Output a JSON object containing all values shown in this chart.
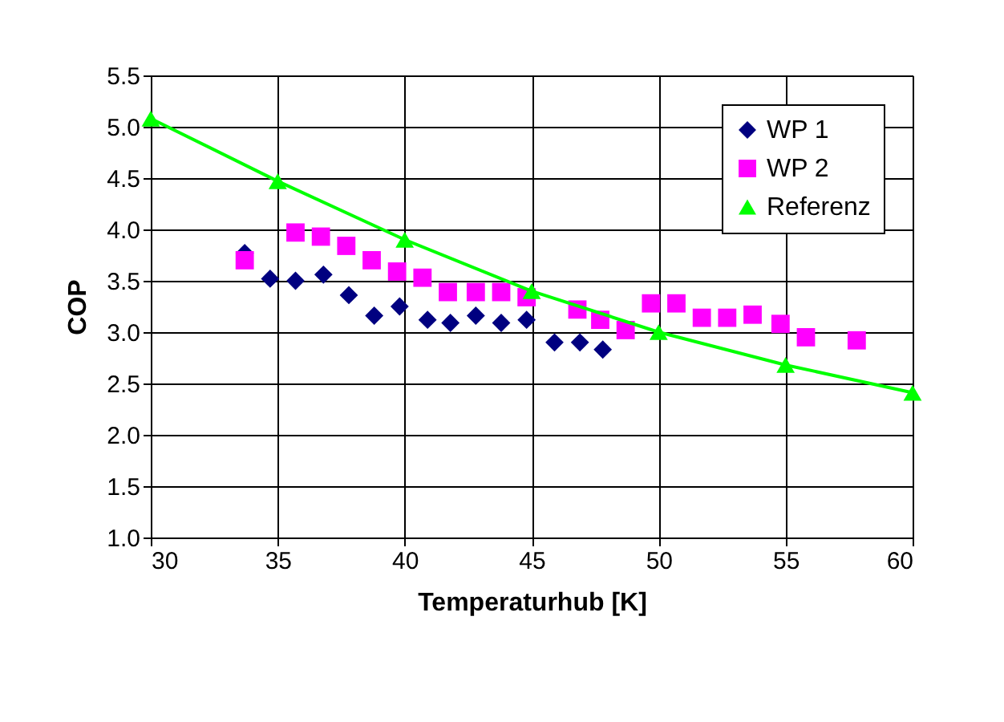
{
  "chart_data": {
    "type": "scatter",
    "xlabel": "Temperaturhub [K]",
    "ylabel": "COP",
    "xlim": [
      30,
      60
    ],
    "xticks": [
      30,
      35,
      40,
      45,
      50,
      55,
      60
    ],
    "ylim": [
      1.0,
      5.5
    ],
    "yticks": [
      {
        "value": 1.0,
        "label": "1.0"
      },
      {
        "value": 1.5,
        "label": "1.5"
      },
      {
        "value": 2.0,
        "label": "2.0"
      },
      {
        "value": 2.5,
        "label": "2.5"
      },
      {
        "value": 3.0,
        "label": "3.0"
      },
      {
        "value": 3.5,
        "label": "3.5"
      },
      {
        "value": 4.0,
        "label": "4.0"
      },
      {
        "value": 4.5,
        "label": "4.5"
      },
      {
        "value": 5.0,
        "label": "5.0"
      },
      {
        "value": 5.5,
        "label": "5.5"
      }
    ],
    "grid": true,
    "legend": "top right",
    "series": [
      {
        "name": "WP 1",
        "marker": "diamond",
        "color": "#000080",
        "x": [
          33.7,
          34.7,
          35.7,
          36.8,
          37.8,
          38.8,
          39.8,
          40.9,
          41.8,
          42.8,
          43.8,
          44.8,
          45.9,
          46.9,
          47.8
        ],
        "values": [
          3.77,
          3.52,
          3.5,
          3.56,
          3.36,
          3.16,
          3.25,
          3.12,
          3.09,
          3.16,
          3.09,
          3.12,
          2.9,
          2.9,
          2.83
        ]
      },
      {
        "name": "WP 2",
        "marker": "square",
        "color": "#ff00ff",
        "x": [
          33.7,
          35.7,
          36.7,
          37.7,
          38.7,
          39.7,
          40.7,
          41.7,
          42.8,
          43.8,
          44.8,
          46.8,
          47.7,
          48.7,
          49.7,
          50.7,
          51.7,
          52.7,
          53.7,
          54.8,
          55.8,
          57.8
        ],
        "values": [
          3.7,
          3.97,
          3.93,
          3.84,
          3.7,
          3.59,
          3.53,
          3.39,
          3.39,
          3.39,
          3.34,
          3.22,
          3.12,
          3.02,
          3.28,
          3.28,
          3.14,
          3.14,
          3.17,
          3.08,
          2.95,
          2.92
        ]
      },
      {
        "name": "Referenz",
        "type": "line",
        "marker": "triangle",
        "color": "#00ff00",
        "x": [
          30,
          35,
          40,
          45,
          50,
          55,
          60
        ],
        "values": [
          5.08,
          4.47,
          3.9,
          3.4,
          3.0,
          2.68,
          2.41
        ]
      }
    ]
  }
}
